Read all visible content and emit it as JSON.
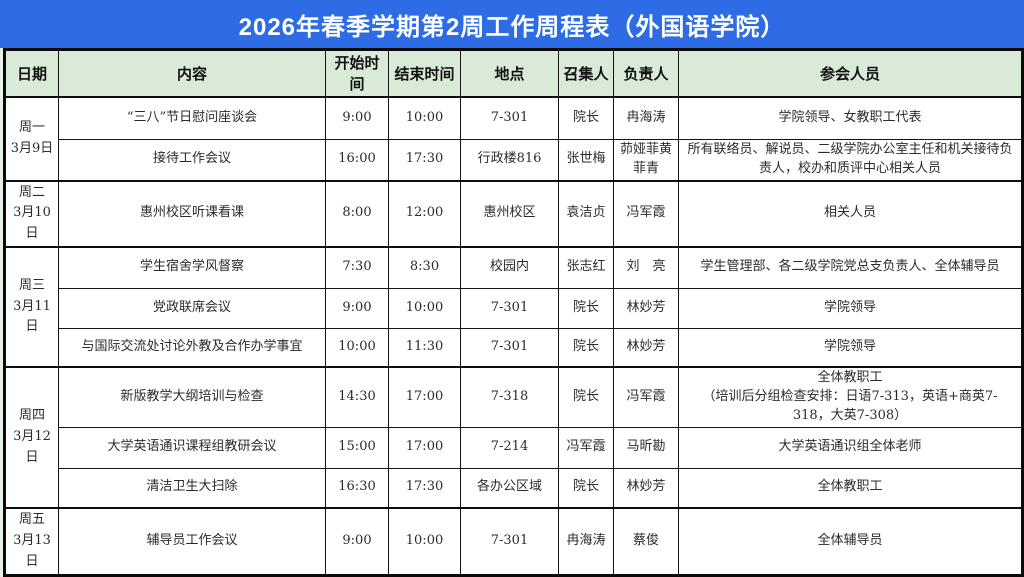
{
  "title": "2026年春季学期第2周工作周程表（外国语学院）",
  "colors": {
    "title_bg": "#2D6CE5",
    "title_text": "#FFFFFF",
    "header_bg": "#D9EAD9",
    "page_bg": "#E7F1E7",
    "border": "#141414"
  },
  "table": {
    "columns": [
      "日期",
      "内容",
      "开始时间",
      "结束时间",
      "地点",
      "召集人",
      "负责人",
      "参会人员"
    ],
    "days": [
      {
        "day": "周一",
        "date": "3月9日",
        "events": [
          {
            "content": "“三八”节日慰问座谈会",
            "start": "9:00",
            "end": "10:00",
            "place": "7-301",
            "convener": "院长",
            "lead": "冉海涛",
            "participants": "学院领导、女教职工代表"
          },
          {
            "content": "接待工作会议",
            "start": "16:00",
            "end": "17:30",
            "place": "行政楼816",
            "convener": "张世梅",
            "lead": "茆娅菲黄菲青",
            "participants": "所有联络员、解说员、二级学院办公室主任和机关接待负责人，校办和质评中心相关人员"
          }
        ]
      },
      {
        "day": "周二",
        "date": "3月10日",
        "events": [
          {
            "content": "惠州校区听课看课",
            "start": "8:00",
            "end": "12:00",
            "place": "惠州校区",
            "convener": "袁洁贞",
            "lead": "冯军霞",
            "participants": "相关人员"
          }
        ]
      },
      {
        "day": "周三",
        "date": "3月11日",
        "events": [
          {
            "content": "学生宿舍学风督察",
            "start": "7:30",
            "end": "8:30",
            "place": "校园内",
            "convener": "张志红",
            "lead": "刘　亮",
            "participants": "学生管理部、各二级学院党总支负责人、全体辅导员"
          },
          {
            "content": "党政联席会议",
            "start": "9:00",
            "end": "10:00",
            "place": "7-301",
            "convener": "院长",
            "lead": "林妙芳",
            "participants": "学院领导"
          },
          {
            "content": "与国际交流处讨论外教及合作办学事宜",
            "start": "10:00",
            "end": "11:30",
            "place": "7-301",
            "convener": "院长",
            "lead": "林妙芳",
            "participants": "学院领导"
          }
        ]
      },
      {
        "day": "周四",
        "date": "3月12日",
        "events": [
          {
            "content": "新版教学大纲培训与检查",
            "start": "14:30",
            "end": "17:00",
            "place": "7-318",
            "convener": "院长",
            "lead": "冯军霞",
            "participants": "全体教职工\n（培训后分组检查安排：日语7-313，英语+商英7-318，大英7-308）"
          },
          {
            "content": "大学英语通识课程组教研会议",
            "start": "15:00",
            "end": "17:00",
            "place": "7-214",
            "convener": "冯军霞",
            "lead": "马昕勘",
            "participants": "大学英语通识组全体老师"
          },
          {
            "content": "清洁卫生大扫除",
            "start": "16:30",
            "end": "17:30",
            "place": "各办公区域",
            "convener": "院长",
            "lead": "林妙芳",
            "participants": "全体教职工"
          }
        ]
      },
      {
        "day": "周五",
        "date": "3月13日",
        "events": [
          {
            "content": "辅导员工作会议",
            "start": "9:00",
            "end": "10:00",
            "place": "7-301",
            "convener": "冉海涛",
            "lead": "蔡俊",
            "participants": "全体辅导员"
          }
        ]
      }
    ]
  }
}
